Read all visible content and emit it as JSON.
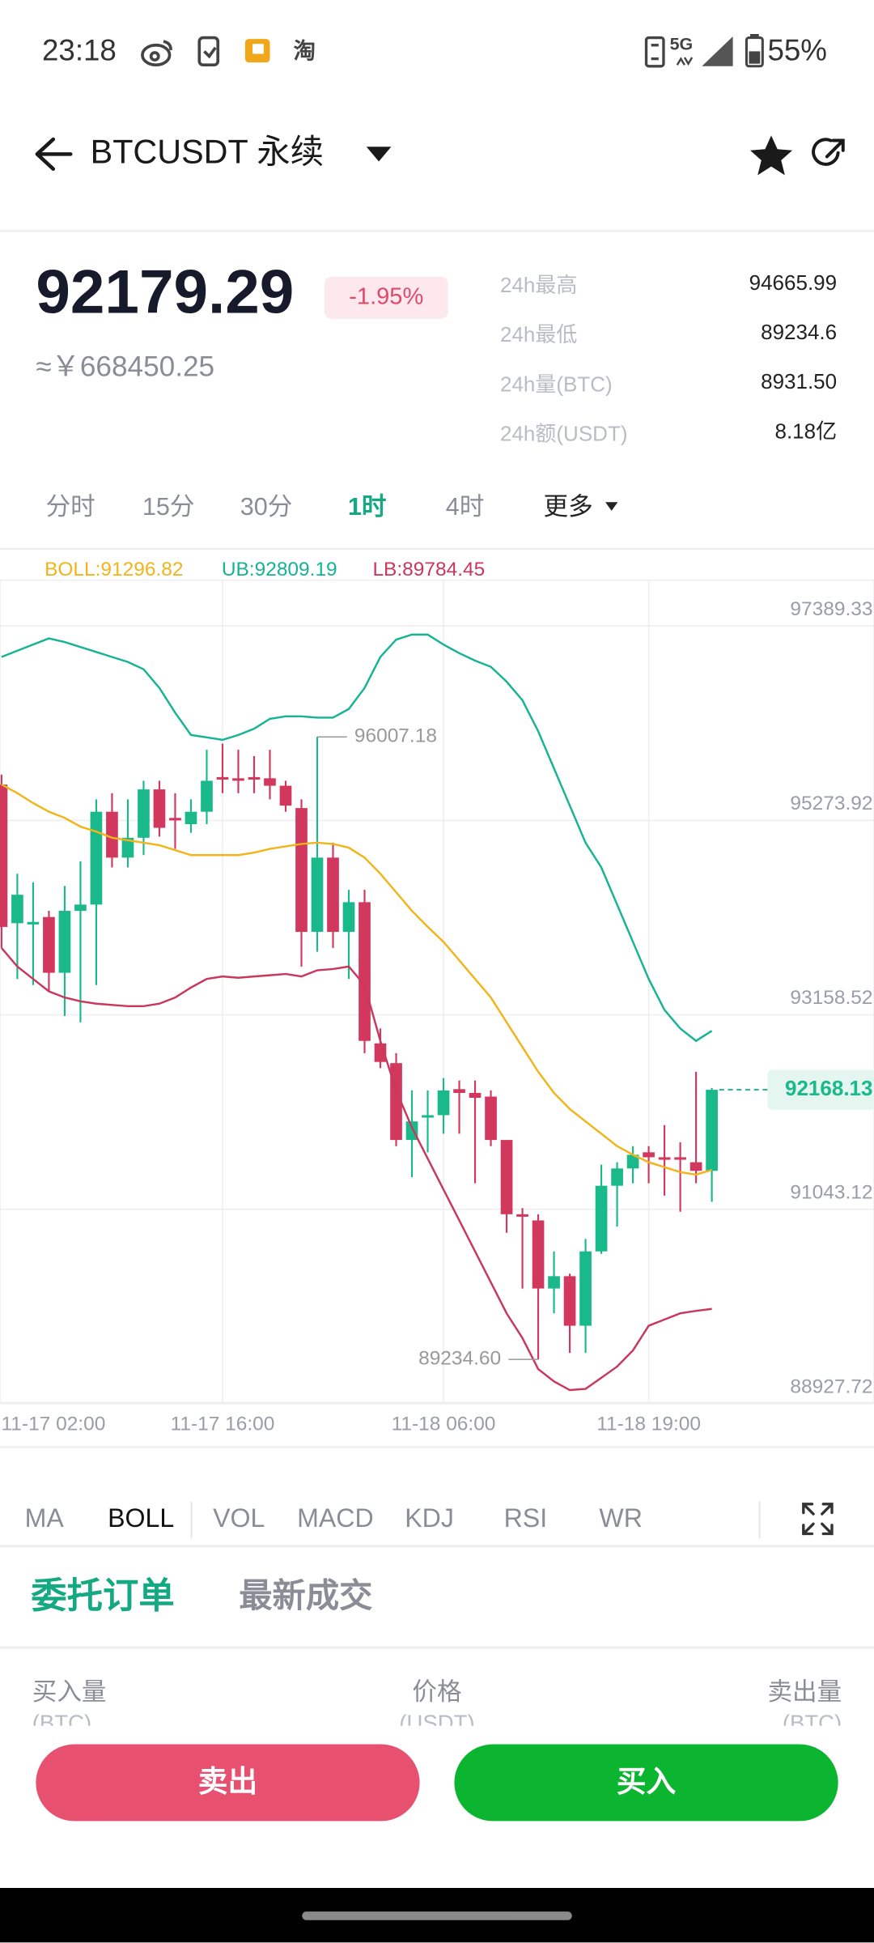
{
  "status_bar": {
    "time": "23:18",
    "app_icon": "淘",
    "network": "5G",
    "battery": "55%"
  },
  "header": {
    "symbol": "BTCUSDT 永续"
  },
  "ticker": {
    "price": "92179.29",
    "change": "-1.95%",
    "cny": "≈￥668450.25",
    "stats": [
      {
        "label": "24h最高",
        "value": "94665.99"
      },
      {
        "label": "24h最低",
        "value": "89234.6"
      },
      {
        "label": "24h量(BTC)",
        "value": "8931.50"
      },
      {
        "label": "24h额(USDT)",
        "value": "8.18亿"
      }
    ]
  },
  "periods": {
    "items": [
      "分时",
      "15分",
      "30分",
      "1时",
      "4时",
      "更多"
    ],
    "active": 3
  },
  "chart_data": {
    "type": "candlestick",
    "categories": [
      "11-17 02:00",
      null,
      null,
      null,
      null,
      null,
      null,
      null,
      null,
      null,
      null,
      null,
      null,
      null,
      "11-17 16:00",
      null,
      null,
      null,
      null,
      null,
      null,
      null,
      null,
      null,
      null,
      null,
      null,
      null,
      "11-18 06:00",
      null,
      null,
      null,
      null,
      null,
      null,
      null,
      null,
      null,
      null,
      null,
      null,
      "11-18 19:00",
      null,
      null,
      null,
      null
    ],
    "open": [
      95489,
      93980,
      93967,
      94048,
      93441,
      94115,
      94183,
      95193,
      94694,
      94910,
      95436,
      95126,
      95058,
      95193,
      95570,
      95557,
      95570,
      95557,
      95476,
      95233,
      93886,
      94694,
      93886,
      94209,
      92673,
      92458,
      91622,
      91865,
      91892,
      92175,
      92134,
      92094,
      91622,
      90814,
      90747,
      90006,
      90140,
      89601,
      90410,
      91124,
      91312,
      91488,
      91434,
      91434,
      91380,
      91286
    ],
    "high": [
      95597,
      94519,
      94425,
      94115,
      94385,
      94654,
      95328,
      95395,
      95328,
      95530,
      95530,
      95395,
      95328,
      95867,
      95934,
      95867,
      95799,
      95867,
      95530,
      95328,
      96007.18,
      94856,
      94344,
      94344,
      92835,
      92566,
      92161,
      92161,
      92296,
      92269,
      92269,
      92161,
      91622,
      90881,
      90814,
      90410,
      90167,
      90545,
      91353,
      91380,
      91555,
      91555,
      91784,
      91596,
      92364,
      92188
    ],
    "low": [
      93711,
      93374,
      93307,
      93239,
      92970,
      92902,
      93307,
      94587,
      94587,
      94721,
      94923,
      94789,
      94964,
      95058,
      95395,
      95395,
      95395,
      95328,
      95193,
      93509,
      93670,
      93711,
      93374,
      92566,
      92404,
      91555,
      91218,
      91488,
      91690,
      91690,
      91151,
      91555,
      90612,
      90006,
      89234.6,
      89736,
      89305,
      89305,
      90383,
      90679,
      91151,
      91151,
      91016,
      90841,
      91151,
      90949
    ],
    "close": [
      93940,
      94290,
      93994,
      93441,
      94115,
      94183,
      95193,
      94694,
      94910,
      95436,
      95018,
      95099,
      95193,
      95530,
      95543,
      95530,
      95543,
      95476,
      95260,
      93886,
      94694,
      93886,
      94209,
      92700,
      92471,
      91622,
      91824,
      91892,
      92161,
      92134,
      92081,
      91622,
      90814,
      90787,
      90006,
      90140,
      89601,
      90410,
      91124,
      91312,
      91461,
      91434,
      91407,
      91407,
      91286,
      92168.13
    ],
    "up_color": "#19b98c",
    "down_color": "#d2385d",
    "series": [
      {
        "name": "BOLL:91296.82",
        "color": "#f1b419",
        "values": [
          95490,
          95395,
          95287,
          95193,
          95126,
          95031,
          94977,
          94910,
          94883,
          94856,
          94829,
          94775,
          94721,
          94721,
          94721,
          94721,
          94748,
          94789,
          94816,
          94843,
          94856,
          94843,
          94802,
          94694,
          94519,
          94317,
          94115,
          93940,
          93778,
          93576,
          93374,
          93172,
          92902,
          92633,
          92364,
          92134,
          91959,
          91824,
          91690,
          91555,
          91461,
          91380,
          91326,
          91272,
          91245,
          91296.82
        ]
      },
      {
        "name": "UB:92809.19",
        "color": "#16b394",
        "values": [
          96877,
          96945,
          97012,
          97079,
          97039,
          96985,
          96931,
          96877,
          96823,
          96743,
          96540,
          96271,
          96028,
          96002,
          95975,
          96028,
          96096,
          96204,
          96231,
          96231,
          96217,
          96217,
          96311,
          96540,
          96877,
          97066,
          97120,
          97120,
          97012,
          96918,
          96837,
          96770,
          96608,
          96406,
          96069,
          95665,
          95260,
          94856,
          94587,
          94183,
          93778,
          93374,
          93037,
          92835,
          92700,
          92809.19
        ]
      },
      {
        "name": "LB:89784.45",
        "color": "#c9385c",
        "values": [
          93711,
          93509,
          93374,
          93239,
          93172,
          93131,
          93105,
          93091,
          93078,
          93078,
          93105,
          93172,
          93280,
          93374,
          93401,
          93387,
          93401,
          93414,
          93428,
          93401,
          93468,
          93482,
          93509,
          93307,
          92700,
          92161,
          91757,
          91420,
          91083,
          90747,
          90410,
          90073,
          89736,
          89467,
          89130,
          88995,
          88901,
          88914,
          89035,
          89157,
          89332,
          89601,
          89669,
          89736,
          89763,
          89784.45
        ]
      }
    ],
    "ylim": [
      88927.72,
      97389.33
    ],
    "yticks": [
      97389.33,
      95273.92,
      93158.52,
      91043.12,
      88927.72
    ],
    "grid": true,
    "annotations": [
      96007.18,
      {
        "value": 89234.6,
        "label": "89234.60"
      }
    ]
  },
  "indicators": {
    "items": [
      "MA",
      "BOLL",
      "VOL",
      "MACD",
      "KDJ",
      "RSI",
      "WR"
    ],
    "active": 1
  },
  "tabs": {
    "items": [
      "委托订单",
      "最新成交"
    ],
    "active": 0
  },
  "order_book": {
    "columns": [
      {
        "title": "买入量",
        "unit": "(BTC)"
      },
      {
        "title": "价格",
        "unit": "(USDT)"
      },
      {
        "title": "卖出量",
        "unit": "(BTC)"
      }
    ]
  },
  "actions": {
    "sell": "卖出",
    "buy": "买入"
  }
}
